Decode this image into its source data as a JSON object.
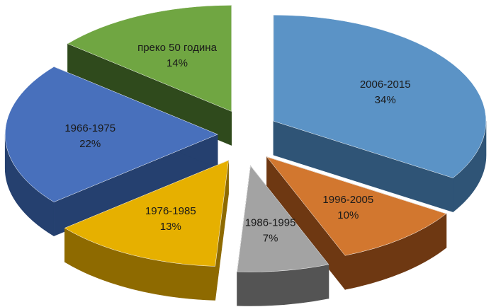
{
  "chart_data": {
    "type": "pie",
    "style": "3d-exploded",
    "title": "",
    "legend": "none",
    "slices": [
      {
        "label": "2006-2015",
        "value": 34,
        "percent_label": "34%",
        "color": "#5B93C6",
        "side_color": "#2F5476"
      },
      {
        "label": "1996-2005",
        "value": 10,
        "percent_label": "10%",
        "color": "#D2772F",
        "side_color": "#6E3812"
      },
      {
        "label": "1986-1995",
        "value": 7,
        "percent_label": "7%",
        "color": "#A3A3A3",
        "side_color": "#545454"
      },
      {
        "label": "1976-1985",
        "value": 13,
        "percent_label": "13%",
        "color": "#E6B000",
        "side_color": "#8E6A00"
      },
      {
        "label": "1966-1975",
        "value": 22,
        "percent_label": "22%",
        "color": "#4870BC",
        "side_color": "#25406F"
      },
      {
        "label": "преко 50 година",
        "value": 14,
        "percent_label": "14%",
        "color": "#70A642",
        "side_color": "#2F4A1C"
      }
    ]
  }
}
